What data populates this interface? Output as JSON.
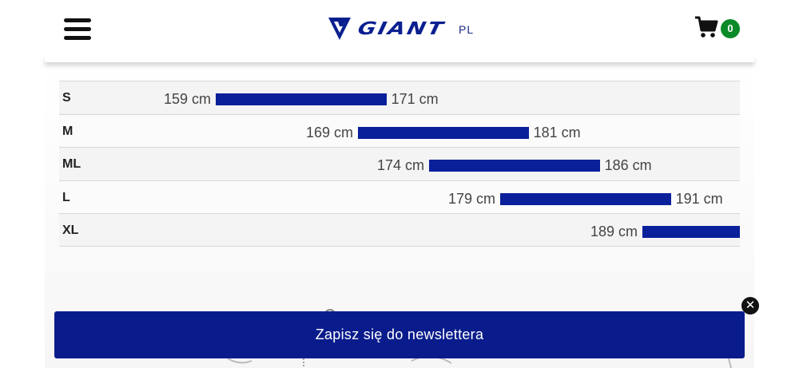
{
  "header": {
    "logo_text": "GIANT",
    "language": "PL",
    "cart_count": "0"
  },
  "icons": {
    "menu": "hamburger-menu-icon",
    "cart": "shopping-cart-icon",
    "close": "close-icon",
    "logo": "giant-logo-icon"
  },
  "colors": {
    "brand_blue": "#0a1f9a",
    "newsletter_bg": "#0a1c8c",
    "cart_badge": "#0b8a2a"
  },
  "size_chart": {
    "unit": "cm",
    "axis_min": 159,
    "axis_max": 193,
    "rows": [
      {
        "size": "S",
        "min": 159,
        "max": 171,
        "min_label": "159 cm",
        "max_label": "171 cm"
      },
      {
        "size": "M",
        "min": 169,
        "max": 181,
        "min_label": "169 cm",
        "max_label": "181 cm"
      },
      {
        "size": "ML",
        "min": 174,
        "max": 186,
        "min_label": "174 cm",
        "max_label": "186 cm"
      },
      {
        "size": "L",
        "min": 179,
        "max": 191,
        "min_label": "179 cm",
        "max_label": "191 cm"
      },
      {
        "size": "XL",
        "min": 189,
        "max": null,
        "min_label": "189 cm",
        "max_label": ""
      }
    ]
  },
  "newsletter": {
    "label": "Zapisz się do newslettera"
  },
  "close": {
    "glyph": "✕"
  }
}
